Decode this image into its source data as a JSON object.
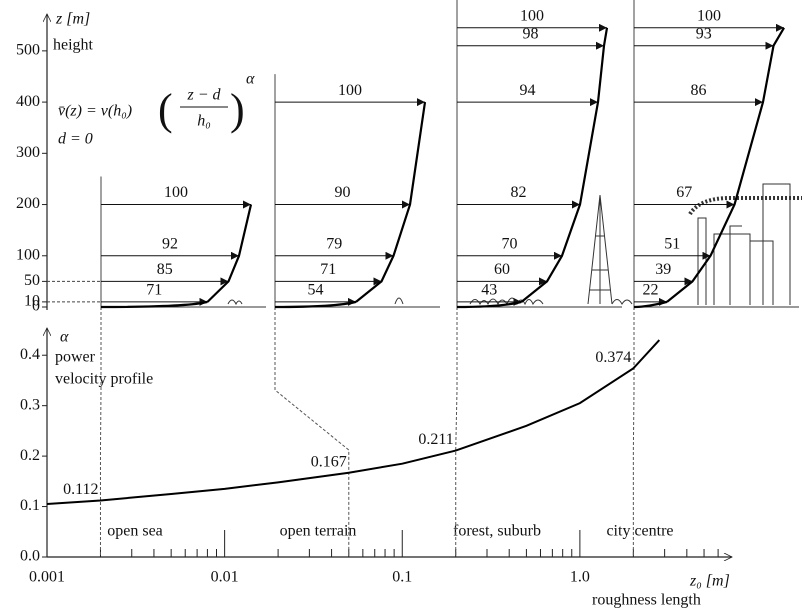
{
  "chart_data": [
    {
      "type": "profile",
      "y_label": "z [m]",
      "y_sublabel": "height",
      "formula": {
        "lhs": "v̄(z) = v(h₀)",
        "num": "z − d",
        "den": "h₀",
        "exp": "α"
      },
      "d_note": "d = 0",
      "ylim": [
        0,
        570
      ],
      "yticks": [
        0,
        10,
        50,
        100,
        200,
        300,
        400,
        500
      ],
      "panels": [
        {
          "heights": [
            10,
            50,
            100,
            200
          ],
          "values": [
            71,
            85,
            92,
            100
          ]
        },
        {
          "heights": [
            10,
            50,
            100,
            200,
            400
          ],
          "values": [
            54,
            71,
            79,
            90,
            100
          ]
        },
        {
          "heights": [
            10,
            50,
            100,
            200,
            400,
            510,
            545
          ],
          "values": [
            43,
            60,
            70,
            82,
            94,
            98,
            100
          ]
        },
        {
          "heights": [
            10,
            50,
            100,
            200,
            400,
            510,
            545
          ],
          "values": [
            22,
            39,
            51,
            67,
            86,
            93,
            100
          ]
        }
      ]
    },
    {
      "type": "line",
      "y_label": "α",
      "y_sublabel": "power",
      "y_sublabel2": "velocity profile",
      "x_label": "z₀ [m]",
      "x_sublabel": "roughness length",
      "log_x": true,
      "xlim": [
        0.001,
        7
      ],
      "xticks": [
        0.001,
        0.01,
        0.1,
        {
          "value": 1,
          "label": "1.0"
        }
      ],
      "ylim": [
        0,
        0.45
      ],
      "yticks": [
        {
          "value": 0,
          "label": "0.0"
        },
        0.1,
        0.2,
        0.3,
        0.4
      ],
      "color": "#000000",
      "x": [
        0.001,
        0.002,
        0.005,
        0.01,
        0.02,
        0.05,
        0.1,
        0.2,
        0.5,
        1,
        2,
        2.8
      ],
      "values": [
        0.105,
        0.112,
        0.125,
        0.135,
        0.148,
        0.167,
        0.185,
        0.211,
        0.26,
        0.305,
        0.374,
        0.43
      ],
      "terrains": [
        {
          "name": "open sea",
          "z0": 0.002
        },
        {
          "name": "open terrain",
          "z0": 0.05
        },
        {
          "name": "forest, suburb",
          "z0": 0.2
        },
        {
          "name": "city centre",
          "z0": 2
        }
      ],
      "point_labels": {
        "x": [
          0.002,
          0.05,
          0.2,
          2
        ],
        "values": [
          0.112,
          0.167,
          0.211,
          0.374
        ]
      }
    }
  ]
}
